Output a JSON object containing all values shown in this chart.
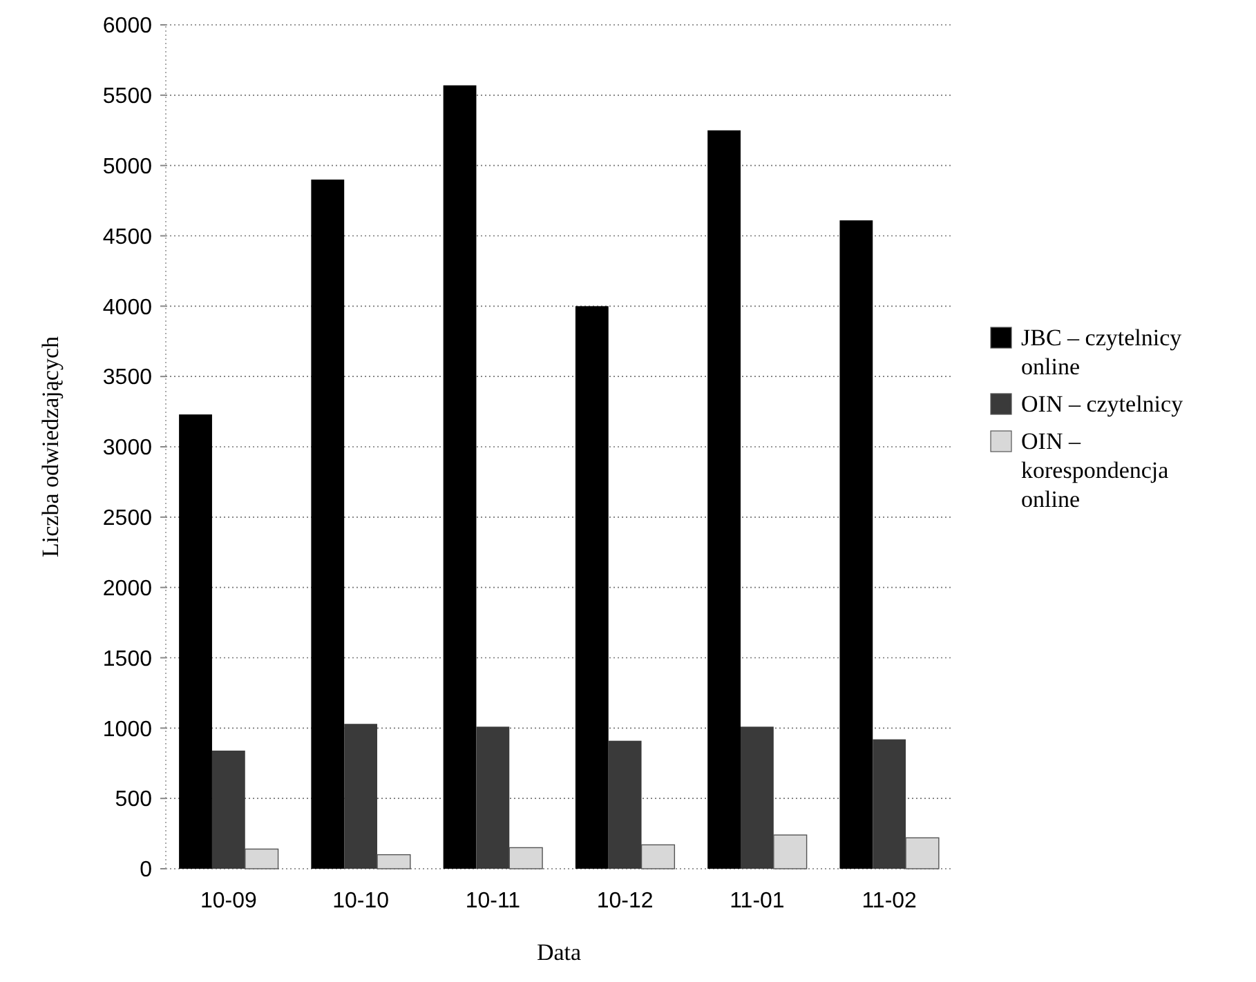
{
  "chart_data": {
    "type": "bar",
    "xlabel": "Data",
    "ylabel": "Liczba odwiedzających",
    "categories": [
      "10-09",
      "10-10",
      "10-11",
      "10-12",
      "11-01",
      "11-02"
    ],
    "series": [
      {
        "name": "JBC – czytelnicy online",
        "color": "#000000",
        "values": [
          3230,
          4900,
          5570,
          4000,
          5250,
          4610
        ]
      },
      {
        "name": "OIN – czytelnicy",
        "color": "#3a3a3a",
        "values": [
          840,
          1030,
          1010,
          910,
          1010,
          920
        ]
      },
      {
        "name": "OIN – korespondencja online",
        "color": "#d8d8d8",
        "values": [
          140,
          100,
          150,
          170,
          240,
          220
        ]
      }
    ],
    "ylim": [
      0,
      6000
    ],
    "yticks": [
      0,
      500,
      1000,
      1500,
      2000,
      2500,
      3000,
      3500,
      4000,
      4500,
      5000,
      5500,
      6000
    ],
    "grid": "y",
    "legend": "right"
  }
}
